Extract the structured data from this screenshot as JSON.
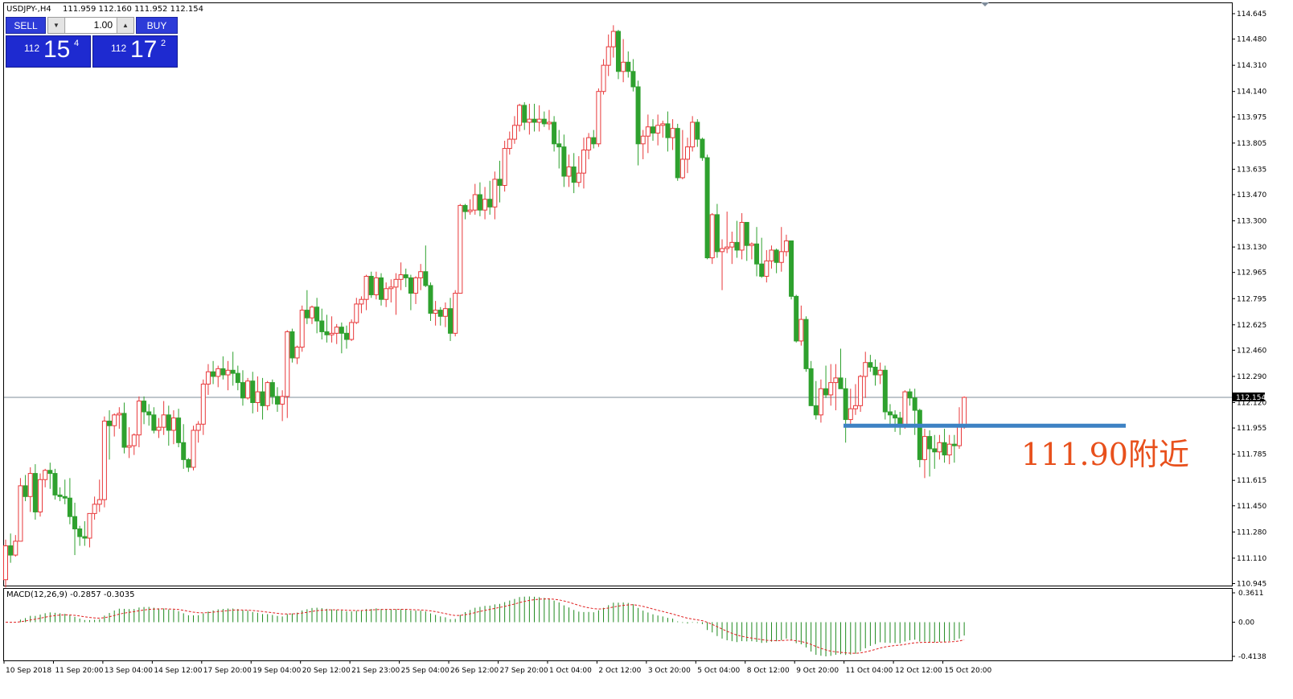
{
  "header": {
    "symbol": "USDJPY-,H4",
    "ohlc": "111.959 112.160 111.952 112.154"
  },
  "trade_panel": {
    "sell_label": "SELL",
    "buy_label": "BUY",
    "lot_value": "1.00",
    "lot_down_icon": "chevron-down-icon",
    "lot_up_icon": "chevron-up-icon",
    "sell_price": {
      "big": "112",
      "main": "15",
      "sup": "4"
    },
    "buy_price": {
      "big": "112",
      "main": "17",
      "sup": "2"
    }
  },
  "annotation": "111.90附近",
  "indicator": {
    "label": "MACD(12,26,9) -0.2857 -0.3035",
    "ticks": [
      "0.3611",
      "0.00",
      "-0.4138"
    ]
  },
  "colors": {
    "bull": "#e8383a",
    "bear": "#2ea12e",
    "macd_hist": "#1f8a1f",
    "signal": "#e02020",
    "support_line": "#3d82c4",
    "bid_line": "#7f8c9a",
    "annotation": "#e8501c"
  },
  "chart_data": {
    "type": "candlestick",
    "price_range": [
      110.945,
      114.645
    ],
    "price_ticks": [
      "114.645",
      "114.480",
      "114.310",
      "114.140",
      "113.975",
      "113.805",
      "113.635",
      "113.470",
      "113.300",
      "113.130",
      "112.965",
      "112.795",
      "112.625",
      "112.460",
      "112.290",
      "112.120",
      "111.955",
      "111.785",
      "111.615",
      "111.450",
      "111.280",
      "111.110",
      "110.945"
    ],
    "current_price_label": "112.154",
    "current_price": 112.154,
    "support_level": 111.97,
    "time_labels": [
      "10 Sep 2018",
      "11 Sep 20:00",
      "13 Sep 04:00",
      "14 Sep 12:00",
      "17 Sep 20:00",
      "19 Sep 04:00",
      "20 Sep 12:00",
      "21 Sep 23:00",
      "25 Sep 04:00",
      "26 Sep 12:00",
      "27 Sep 20:00",
      "1 Oct 04:00",
      "2 Oct 12:00",
      "3 Oct 20:00",
      "5 Oct 04:00",
      "8 Oct 12:00",
      "9 Oct 20:00",
      "11 Oct 04:00",
      "12 Oct 12:00",
      "15 Oct 20:00"
    ],
    "candles": [
      [
        110.97,
        111.23,
        110.92,
        111.19
      ],
      [
        111.19,
        111.27,
        111.08,
        111.13
      ],
      [
        111.13,
        111.26,
        111.12,
        111.22
      ],
      [
        111.22,
        111.63,
        111.22,
        111.58
      ],
      [
        111.58,
        111.65,
        111.48,
        111.51
      ],
      [
        111.51,
        111.7,
        111.41,
        111.66
      ],
      [
        111.66,
        111.72,
        111.36,
        111.41
      ],
      [
        111.41,
        111.66,
        111.38,
        111.62
      ],
      [
        111.62,
        111.69,
        111.57,
        111.68
      ],
      [
        111.68,
        111.73,
        111.56,
        111.66
      ],
      [
        111.66,
        111.69,
        111.49,
        111.52
      ],
      [
        111.52,
        111.57,
        111.48,
        111.51
      ],
      [
        111.51,
        111.62,
        111.46,
        111.5
      ],
      [
        111.5,
        111.63,
        111.33,
        111.38
      ],
      [
        111.38,
        111.47,
        111.13,
        111.3
      ],
      [
        111.3,
        111.32,
        111.19,
        111.25
      ],
      [
        111.25,
        111.35,
        111.19,
        111.24
      ],
      [
        111.24,
        111.4,
        111.18,
        111.4
      ],
      [
        111.4,
        111.51,
        111.36,
        111.46
      ],
      [
        111.46,
        111.62,
        111.41,
        111.49
      ],
      [
        111.49,
        112.03,
        111.44,
        112.0
      ],
      [
        112.0,
        112.07,
        111.75,
        111.97
      ],
      [
        111.97,
        112.05,
        111.9,
        112.04
      ],
      [
        112.04,
        112.09,
        111.95,
        112.05
      ],
      [
        112.05,
        112.12,
        111.79,
        111.83
      ],
      [
        111.83,
        111.96,
        111.76,
        111.84
      ],
      [
        111.84,
        111.92,
        111.78,
        111.91
      ],
      [
        111.91,
        112.16,
        111.83,
        112.13
      ],
      [
        112.13,
        112.16,
        111.98,
        112.06
      ],
      [
        112.06,
        112.11,
        111.97,
        112.04
      ],
      [
        112.04,
        112.09,
        111.92,
        111.94
      ],
      [
        111.94,
        112.02,
        111.89,
        111.96
      ],
      [
        111.96,
        112.13,
        111.91,
        112.04
      ],
      [
        112.04,
        112.1,
        111.84,
        111.94
      ],
      [
        111.94,
        112.07,
        111.85,
        112.02
      ],
      [
        112.02,
        112.08,
        111.83,
        111.86
      ],
      [
        111.86,
        111.98,
        111.69,
        111.75
      ],
      [
        111.75,
        111.76,
        111.67,
        111.7
      ],
      [
        111.7,
        111.97,
        111.68,
        111.94
      ],
      [
        111.94,
        112.0,
        111.86,
        111.98
      ],
      [
        111.98,
        112.27,
        111.91,
        112.24
      ],
      [
        112.24,
        112.37,
        112.17,
        112.32
      ],
      [
        112.32,
        112.39,
        112.24,
        112.29
      ],
      [
        112.29,
        112.36,
        112.22,
        112.34
      ],
      [
        112.34,
        112.42,
        112.27,
        112.3
      ],
      [
        112.3,
        112.39,
        112.2,
        112.33
      ],
      [
        112.33,
        112.45,
        112.23,
        112.31
      ],
      [
        112.31,
        112.36,
        112.2,
        112.25
      ],
      [
        112.25,
        112.33,
        112.1,
        112.15
      ],
      [
        112.15,
        112.28,
        112.14,
        112.26
      ],
      [
        112.26,
        112.32,
        112.05,
        112.12
      ],
      [
        112.12,
        112.29,
        112.06,
        112.19
      ],
      [
        112.19,
        112.28,
        112.01,
        112.1
      ],
      [
        112.1,
        112.26,
        112.07,
        112.25
      ],
      [
        112.25,
        112.27,
        112.11,
        112.16
      ],
      [
        112.16,
        112.22,
        112.06,
        112.11
      ],
      [
        112.11,
        112.2,
        112.0,
        112.16
      ],
      [
        112.16,
        112.59,
        112.02,
        112.58
      ],
      [
        112.58,
        112.6,
        112.38,
        112.41
      ],
      [
        112.41,
        112.49,
        112.37,
        112.48
      ],
      [
        112.48,
        112.75,
        112.45,
        112.72
      ],
      [
        112.72,
        112.85,
        112.63,
        112.67
      ],
      [
        112.67,
        112.75,
        112.63,
        112.74
      ],
      [
        112.74,
        112.8,
        112.57,
        112.65
      ],
      [
        112.65,
        112.73,
        112.53,
        112.58
      ],
      [
        112.58,
        112.69,
        112.51,
        112.56
      ],
      [
        112.56,
        112.68,
        112.51,
        112.57
      ],
      [
        112.57,
        112.63,
        112.5,
        112.61
      ],
      [
        112.61,
        112.64,
        112.44,
        112.57
      ],
      [
        112.57,
        112.62,
        112.47,
        112.53
      ],
      [
        112.53,
        112.66,
        112.52,
        112.64
      ],
      [
        112.64,
        112.8,
        112.63,
        112.76
      ],
      [
        112.76,
        112.81,
        112.7,
        112.79
      ],
      [
        112.79,
        112.95,
        112.72,
        112.94
      ],
      [
        112.94,
        112.97,
        112.8,
        112.82
      ],
      [
        112.82,
        112.97,
        112.79,
        112.93
      ],
      [
        112.93,
        112.96,
        112.75,
        112.79
      ],
      [
        112.79,
        112.9,
        112.74,
        112.86
      ],
      [
        112.86,
        112.92,
        112.77,
        112.87
      ],
      [
        112.87,
        112.96,
        112.69,
        112.92
      ],
      [
        112.92,
        113.03,
        112.85,
        112.95
      ],
      [
        112.95,
        112.99,
        112.87,
        112.93
      ],
      [
        112.93,
        112.95,
        112.72,
        112.83
      ],
      [
        112.83,
        112.94,
        112.76,
        112.93
      ],
      [
        112.93,
        113.02,
        112.85,
        112.97
      ],
      [
        112.97,
        113.14,
        112.87,
        112.88
      ],
      [
        112.88,
        112.9,
        112.65,
        112.7
      ],
      [
        112.7,
        112.78,
        112.62,
        112.72
      ],
      [
        112.72,
        112.74,
        112.62,
        112.68
      ],
      [
        112.68,
        112.77,
        112.61,
        112.73
      ],
      [
        112.73,
        112.8,
        112.52,
        112.57
      ],
      [
        112.57,
        112.85,
        112.55,
        112.83
      ],
      [
        112.83,
        113.41,
        112.83,
        113.4
      ],
      [
        113.4,
        113.41,
        113.31,
        113.36
      ],
      [
        113.36,
        113.44,
        113.34,
        113.37
      ],
      [
        113.37,
        113.54,
        113.34,
        113.47
      ],
      [
        113.47,
        113.55,
        113.33,
        113.37
      ],
      [
        113.37,
        113.52,
        113.31,
        113.44
      ],
      [
        113.44,
        113.56,
        113.34,
        113.39
      ],
      [
        113.39,
        113.62,
        113.31,
        113.57
      ],
      [
        113.57,
        113.69,
        113.42,
        113.53
      ],
      [
        113.53,
        113.82,
        113.49,
        113.77
      ],
      [
        113.77,
        113.88,
        113.73,
        113.83
      ],
      [
        113.83,
        113.98,
        113.8,
        113.92
      ],
      [
        113.92,
        114.06,
        113.88,
        114.05
      ],
      [
        114.05,
        114.07,
        113.89,
        113.94
      ],
      [
        113.94,
        114.06,
        113.86,
        113.96
      ],
      [
        113.96,
        114.06,
        113.88,
        113.94
      ],
      [
        113.94,
        114.05,
        113.88,
        113.96
      ],
      [
        113.96,
        114.01,
        113.91,
        113.93
      ],
      [
        113.93,
        114.02,
        113.89,
        113.94
      ],
      [
        113.94,
        113.98,
        113.75,
        113.8
      ],
      [
        113.8,
        113.89,
        113.64,
        113.78
      ],
      [
        113.78,
        113.86,
        113.52,
        113.59
      ],
      [
        113.59,
        113.73,
        113.52,
        113.65
      ],
      [
        113.65,
        113.74,
        113.48,
        113.55
      ],
      [
        113.55,
        113.72,
        113.52,
        113.61
      ],
      [
        113.61,
        113.84,
        113.51,
        113.76
      ],
      [
        113.76,
        113.87,
        113.7,
        113.84
      ],
      [
        113.84,
        113.89,
        113.77,
        113.8
      ],
      [
        113.8,
        114.16,
        113.78,
        114.14
      ],
      [
        114.14,
        114.35,
        114.12,
        114.31
      ],
      [
        114.31,
        114.51,
        114.24,
        114.43
      ],
      [
        114.43,
        114.57,
        114.36,
        114.53
      ],
      [
        114.53,
        114.54,
        114.22,
        114.27
      ],
      [
        114.27,
        114.48,
        114.2,
        114.33
      ],
      [
        114.33,
        114.4,
        114.23,
        114.27
      ],
      [
        114.27,
        114.35,
        114.14,
        114.17
      ],
      [
        114.17,
        114.21,
        113.66,
        113.8
      ],
      [
        113.8,
        113.89,
        113.7,
        113.85
      ],
      [
        113.85,
        113.99,
        113.74,
        113.91
      ],
      [
        113.91,
        113.96,
        113.82,
        113.87
      ],
      [
        113.87,
        113.99,
        113.79,
        113.92
      ],
      [
        113.92,
        113.95,
        113.84,
        113.93
      ],
      [
        113.93,
        114.01,
        113.75,
        113.84
      ],
      [
        113.84,
        113.96,
        113.76,
        113.9
      ],
      [
        113.9,
        113.93,
        113.56,
        113.58
      ],
      [
        113.58,
        113.89,
        113.57,
        113.7
      ],
      [
        113.7,
        113.84,
        113.61,
        113.78
      ],
      [
        113.78,
        113.98,
        113.75,
        113.94
      ],
      [
        113.94,
        113.96,
        113.78,
        113.83
      ],
      [
        113.83,
        113.84,
        113.69,
        113.71
      ],
      [
        113.71,
        113.73,
        113.05,
        113.06
      ],
      [
        113.06,
        113.35,
        113.02,
        113.34
      ],
      [
        113.34,
        113.41,
        113.06,
        113.1
      ],
      [
        113.1,
        113.18,
        112.85,
        113.12
      ],
      [
        113.12,
        113.36,
        113.09,
        113.13
      ],
      [
        113.13,
        113.23,
        113.02,
        113.16
      ],
      [
        113.16,
        113.3,
        113.06,
        113.11
      ],
      [
        113.11,
        113.35,
        113.05,
        113.29
      ],
      [
        113.29,
        113.29,
        113.04,
        113.14
      ],
      [
        113.14,
        113.16,
        113.05,
        113.15
      ],
      [
        113.15,
        113.26,
        112.94,
        113.02
      ],
      [
        113.02,
        113.19,
        112.93,
        112.94
      ],
      [
        112.94,
        113.11,
        112.9,
        113.04
      ],
      [
        113.04,
        113.14,
        112.99,
        113.11
      ],
      [
        113.11,
        113.12,
        112.96,
        113.03
      ],
      [
        113.03,
        113.26,
        112.97,
        113.1
      ],
      [
        113.1,
        113.21,
        113.07,
        113.17
      ],
      [
        113.17,
        113.17,
        112.79,
        112.81
      ],
      [
        112.81,
        112.82,
        112.51,
        112.52
      ],
      [
        112.52,
        112.75,
        112.49,
        112.66
      ],
      [
        112.66,
        112.68,
        112.32,
        112.34
      ],
      [
        112.34,
        112.39,
        112.1,
        112.1
      ],
      [
        112.1,
        112.26,
        112.01,
        112.04
      ],
      [
        112.04,
        112.27,
        111.99,
        112.21
      ],
      [
        112.21,
        112.36,
        112.15,
        112.17
      ],
      [
        112.17,
        112.37,
        112.1,
        112.25
      ],
      [
        112.25,
        112.37,
        112.07,
        112.28
      ],
      [
        112.28,
        112.47,
        112.23,
        112.21
      ],
      [
        112.21,
        112.28,
        111.86,
        112.01
      ],
      [
        112.01,
        112.21,
        111.98,
        112.08
      ],
      [
        112.08,
        112.24,
        112.04,
        112.1
      ],
      [
        112.1,
        112.3,
        112.06,
        112.29
      ],
      [
        112.29,
        112.45,
        112.15,
        112.38
      ],
      [
        112.38,
        112.43,
        112.32,
        112.35
      ],
      [
        112.35,
        112.4,
        112.23,
        112.3
      ],
      [
        112.3,
        112.38,
        112.24,
        112.33
      ],
      [
        112.33,
        112.36,
        112.01,
        112.06
      ],
      [
        112.06,
        112.11,
        111.96,
        112.04
      ],
      [
        112.04,
        112.07,
        111.93,
        112.02
      ],
      [
        112.02,
        112.06,
        111.91,
        111.97
      ],
      [
        111.97,
        112.2,
        111.95,
        112.19
      ],
      [
        112.19,
        112.21,
        112.1,
        112.15
      ],
      [
        112.15,
        112.21,
        111.91,
        112.07
      ],
      [
        112.07,
        112.08,
        111.7,
        111.75
      ],
      [
        111.75,
        111.95,
        111.63,
        111.9
      ],
      [
        111.9,
        111.94,
        111.64,
        111.82
      ],
      [
        111.82,
        111.91,
        111.69,
        111.8
      ],
      [
        111.8,
        111.91,
        111.75,
        111.86
      ],
      [
        111.86,
        111.95,
        111.73,
        111.78
      ],
      [
        111.78,
        111.91,
        111.72,
        111.85
      ],
      [
        111.85,
        111.91,
        111.73,
        111.84
      ],
      [
        111.84,
        112.09,
        111.82,
        111.97
      ],
      [
        111.96,
        112.16,
        111.95,
        112.154
      ]
    ]
  }
}
